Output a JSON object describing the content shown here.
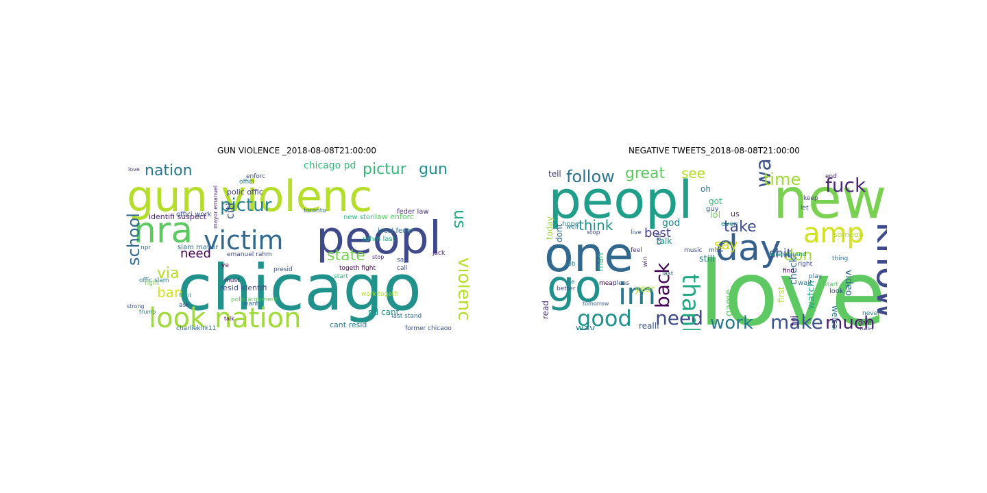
{
  "chart_data": [
    {
      "type": "wordcloud",
      "title": "GUN VIOLENCE _2018-08-08T21:00:00",
      "words": [
        {
          "text": "chicago",
          "color": "#21918c"
        },
        {
          "text": "gun violenc",
          "color": "#b5de2b"
        },
        {
          "text": "peopl",
          "color": "#3e4a89"
        },
        {
          "text": "victim",
          "color": "#31688e"
        },
        {
          "text": "look nation",
          "color": "#a0da39"
        },
        {
          "text": "nra",
          "color": "#5ec962"
        },
        {
          "text": "pictur",
          "color": "#26828e"
        },
        {
          "text": "nation",
          "color": "#2a788e"
        },
        {
          "text": "pictur",
          "color": "#35b779"
        },
        {
          "text": "gun",
          "color": "#21918c"
        },
        {
          "text": "violenc",
          "color": "#b5de2b"
        },
        {
          "text": "school",
          "color": "#31688e"
        },
        {
          "text": "state",
          "color": "#7ad151"
        },
        {
          "text": "us",
          "color": "#22a884"
        },
        {
          "text": "via",
          "color": "#b5de2b"
        },
        {
          "text": "ban",
          "color": "#d2e21b"
        },
        {
          "text": "need",
          "color": "#440154"
        },
        {
          "text": "citi",
          "color": "#3b528b"
        },
        {
          "text": "chicago pd",
          "color": "#35b779"
        },
        {
          "text": "resid identifi",
          "color": "#3e4a89"
        },
        {
          "text": "pd cant",
          "color": "#21918c"
        },
        {
          "text": "cant resid",
          "color": "#2a788e"
        },
        {
          "text": "identifi suspect",
          "color": "#481f70"
        },
        {
          "text": "polic offic",
          "color": "#433e85"
        },
        {
          "text": "offici work",
          "color": "#3b528b"
        },
        {
          "text": "feder law",
          "color": "#472d7b"
        },
        {
          "text": "law enforc",
          "color": "#5ec962"
        },
        {
          "text": "local feder",
          "color": "#2c728e"
        },
        {
          "text": "rahm last",
          "color": "#22a884"
        },
        {
          "text": "new stori",
          "color": "#35b779"
        },
        {
          "text": "slam mayor",
          "color": "#31688e"
        },
        {
          "text": "emanuel rahm",
          "color": "#3e4a89"
        },
        {
          "text": "togeth fight",
          "color": "#440154"
        },
        {
          "text": "work togeth",
          "color": "#b5de2b"
        },
        {
          "text": "last stand",
          "color": "#31688e"
        },
        {
          "text": "former chicago",
          "color": "#3b528b"
        },
        {
          "text": "offic slam",
          "color": "#2a788e"
        },
        {
          "text": "npr",
          "color": "#31688e"
        },
        {
          "text": "right",
          "color": "#7ad151"
        },
        {
          "text": "love",
          "color": "#472d7b"
        },
        {
          "text": "toronto",
          "color": "#31688e"
        },
        {
          "text": "call",
          "color": "#3e4a89"
        },
        {
          "text": "jack",
          "color": "#481f70"
        },
        {
          "text": "fight",
          "color": "#21918c"
        },
        {
          "text": "strong",
          "color": "#3b528b"
        },
        {
          "text": "trump",
          "color": "#26828e"
        },
        {
          "text": "must",
          "color": "#482878"
        },
        {
          "text": "polic argument",
          "color": "#5ec962"
        },
        {
          "text": "presid",
          "color": "#3b528b"
        },
        {
          "text": "ye",
          "color": "#440154"
        },
        {
          "text": "want",
          "color": "#31688e"
        },
        {
          "text": "say",
          "color": "#3b528b"
        },
        {
          "text": "stop",
          "color": "#482878"
        },
        {
          "text": "start",
          "color": "#35b779"
        },
        {
          "text": "talk",
          "color": "#440154"
        },
        {
          "text": "enforc",
          "color": "#3e4a89"
        },
        {
          "text": "offici",
          "color": "#2a788e"
        },
        {
          "text": "ask",
          "color": "#3b528b"
        },
        {
          "text": "mayor emanuel",
          "color": "#481f70"
        },
        {
          "text": "charliekirk11",
          "color": "#31688e"
        }
      ]
    },
    {
      "type": "wordcloud",
      "title": "NEGATIVE TWEETS_2018-08-08T21:00:00",
      "words": [
        {
          "text": "love",
          "color": "#5ec962"
        },
        {
          "text": "peopl",
          "color": "#1f9e89"
        },
        {
          "text": "new",
          "color": "#7ad151"
        },
        {
          "text": "one",
          "color": "#31688e"
        },
        {
          "text": "go",
          "color": "#21918c"
        },
        {
          "text": "day",
          "color": "#35608d"
        },
        {
          "text": "know",
          "color": "#3e4a89"
        },
        {
          "text": "amp",
          "color": "#d2e21b"
        },
        {
          "text": "im",
          "color": "#2a788e"
        },
        {
          "text": "good",
          "color": "#21918c"
        },
        {
          "text": "fuck",
          "color": "#482878"
        },
        {
          "text": "want",
          "color": "#3b528b"
        },
        {
          "text": "time",
          "color": "#a0da39"
        },
        {
          "text": "need",
          "color": "#3e4a89"
        },
        {
          "text": "make",
          "color": "#3b528b"
        },
        {
          "text": "work",
          "color": "#2a788e"
        },
        {
          "text": "thank",
          "color": "#22a884"
        },
        {
          "text": "back",
          "color": "#440154"
        },
        {
          "text": "much",
          "color": "#481f70"
        },
        {
          "text": "follow",
          "color": "#2c728e"
        },
        {
          "text": "great",
          "color": "#5ec962"
        },
        {
          "text": "see",
          "color": "#b5de2b"
        },
        {
          "text": "take",
          "color": "#3e4a89"
        },
        {
          "text": "say",
          "color": "#d2e21b"
        },
        {
          "text": "don",
          "color": "#a0da39"
        },
        {
          "text": "shit",
          "color": "#3b528b"
        },
        {
          "text": "think",
          "color": "#21918c"
        },
        {
          "text": "best",
          "color": "#433e85"
        },
        {
          "text": "god",
          "color": "#26828e"
        },
        {
          "text": "video",
          "color": "#31688e"
        },
        {
          "text": "welcom",
          "color": "#2c728e"
        },
        {
          "text": "watch",
          "color": "#22a884"
        },
        {
          "text": "game",
          "color": "#5ec962"
        },
        {
          "text": "first",
          "color": "#b5de2b"
        },
        {
          "text": "tri",
          "color": "#481f70"
        },
        {
          "text": "check",
          "color": "#31688e"
        },
        {
          "text": "lol",
          "color": "#7ad151"
        },
        {
          "text": "got",
          "color": "#35b779"
        },
        {
          "text": "guy",
          "color": "#3b528b"
        },
        {
          "text": "oh",
          "color": "#2a788e"
        },
        {
          "text": "us",
          "color": "#482878"
        },
        {
          "text": "still",
          "color": "#2a788e"
        },
        {
          "text": "talk",
          "color": "#21918c"
        },
        {
          "text": "year",
          "color": "#b5de2b"
        },
        {
          "text": "realli",
          "color": "#3b528b"
        },
        {
          "text": "way",
          "color": "#26828e"
        },
        {
          "text": "man",
          "color": "#35b779"
        },
        {
          "text": "today",
          "color": "#a0da39"
        },
        {
          "text": "dont",
          "color": "#31688e"
        },
        {
          "text": "tell",
          "color": "#433e85"
        },
        {
          "text": "read",
          "color": "#482878"
        },
        {
          "text": "call",
          "color": "#3b528b"
        },
        {
          "text": "win",
          "color": "#481f70"
        },
        {
          "text": "hope",
          "color": "#21918c"
        },
        {
          "text": "feel",
          "color": "#472d7b"
        },
        {
          "text": "stop",
          "color": "#3e4a89"
        },
        {
          "text": "live",
          "color": "#3b528b"
        },
        {
          "text": "last",
          "color": "#35608d"
        },
        {
          "text": "look",
          "color": "#3e4a89"
        },
        {
          "text": "wait",
          "color": "#2a788e"
        },
        {
          "text": "right",
          "color": "#3b528b"
        },
        {
          "text": "play",
          "color": "#31688e"
        },
        {
          "text": "start",
          "color": "#5ec962"
        },
        {
          "text": "help",
          "color": "#3e4a89"
        },
        {
          "text": "never",
          "color": "#2a788e"
        },
        {
          "text": "give",
          "color": "#440154"
        },
        {
          "text": "end",
          "color": "#481f70"
        },
        {
          "text": "keep",
          "color": "#433e85"
        },
        {
          "text": "let",
          "color": "#3b528b"
        },
        {
          "text": "thing",
          "color": "#31688e"
        },
        {
          "text": "someon",
          "color": "#b5de2b"
        },
        {
          "text": "even",
          "color": "#21918c"
        },
        {
          "text": "music",
          "color": "#3e4a89"
        },
        {
          "text": "miss",
          "color": "#3b528b"
        },
        {
          "text": "well",
          "color": "#2a788e"
        },
        {
          "text": "job",
          "color": "#26828e"
        },
        {
          "text": "use",
          "color": "#31688e"
        },
        {
          "text": "better",
          "color": "#3e4a89"
        },
        {
          "text": "mean",
          "color": "#440154"
        },
        {
          "text": "pleas",
          "color": "#3b528b"
        },
        {
          "text": "arianagrand",
          "color": "#21918c"
        },
        {
          "text": "find",
          "color": "#440154"
        },
        {
          "text": "hey",
          "color": "#3b528b"
        },
        {
          "text": "tomorrow",
          "color": "#35608d"
        }
      ]
    }
  ]
}
